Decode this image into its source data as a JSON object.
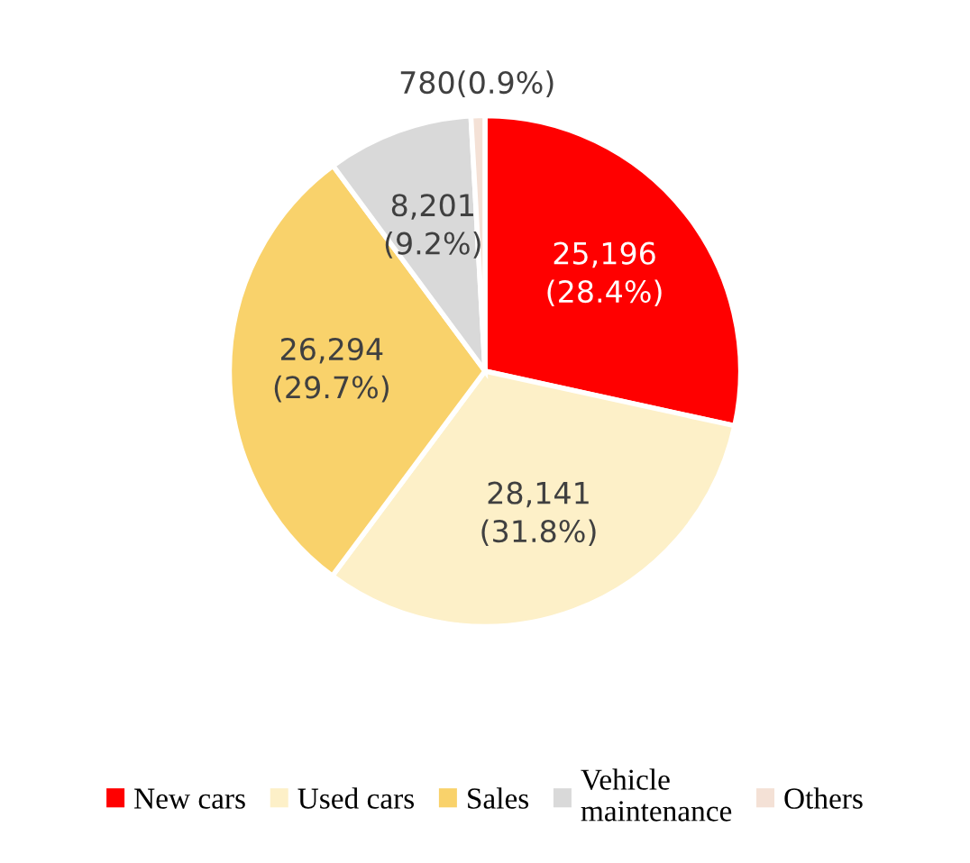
{
  "chart_data": {
    "type": "pie",
    "categories": [
      "New cars",
      "Used cars",
      "Sales",
      "Vehicle\nmaintenance",
      "Others"
    ],
    "values": [
      25196,
      28141,
      26294,
      8201,
      780
    ],
    "value_labels": [
      "25,196\n(28.4%)",
      "28,141\n(31.8%)",
      "26,294\n(29.7%)",
      "8,201\n(9.2%)",
      "780(0.9%)"
    ],
    "colors": [
      "#ff0000",
      "#fdf0c8",
      "#f9d26b",
      "#d9d9d9",
      "#f4e1d6"
    ],
    "legend": "bottom"
  }
}
